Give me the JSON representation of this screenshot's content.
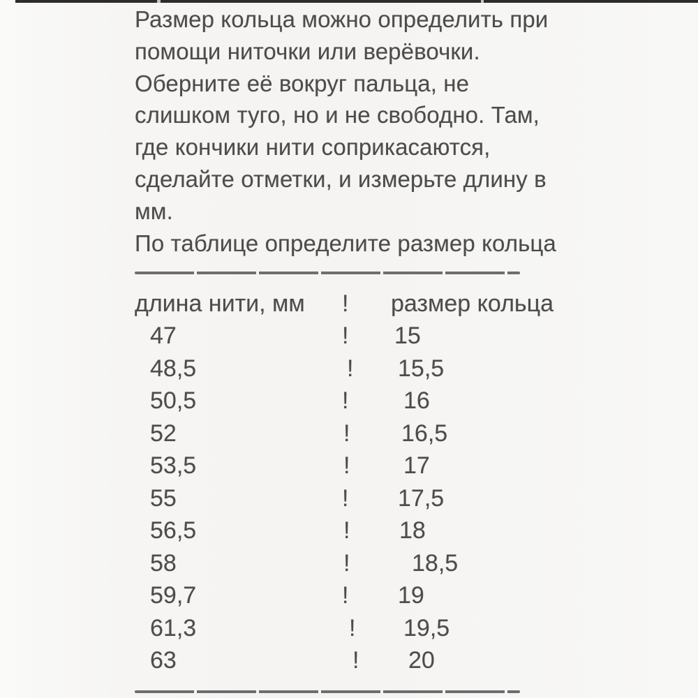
{
  "intro": {
    "lines": [
      "Размер кольца можно определить при",
      "помощи ниточки или верёвочки.",
      "Оберните её вокруг пальца, не",
      "слишком туго, но и не свободно. Там,",
      "где кончики нити соприкасаются,",
      "сделайте отметки, и измерьте длину в",
      "мм.",
      "По таблице определите размер кольца"
    ]
  },
  "table": {
    "divider_glyph": "!",
    "header": {
      "length_label": "длина нити, мм",
      "ring_label": "размер кольца"
    },
    "rows": [
      {
        "length": "47",
        "ring": "15"
      },
      {
        "length": "48,5",
        "ring": "15,5"
      },
      {
        "length": "50,5",
        "ring": "16"
      },
      {
        "length": "52",
        "ring": "16,5"
      },
      {
        "length": "53,5",
        "ring": "17"
      },
      {
        "length": "55",
        "ring": "17,5"
      },
      {
        "length": "56,5",
        "ring": "18"
      },
      {
        "length": "58",
        "ring": "18,5"
      },
      {
        "length": "59,7",
        "ring": "19"
      },
      {
        "length": "61,3",
        "ring": "19,5"
      },
      {
        "length": "63",
        "ring": "20"
      }
    ]
  },
  "colors": {
    "text": "#4c4c4c",
    "background": "#f5f4f2",
    "separator": "#6e6e6e",
    "top_border": "#2e2c29"
  }
}
